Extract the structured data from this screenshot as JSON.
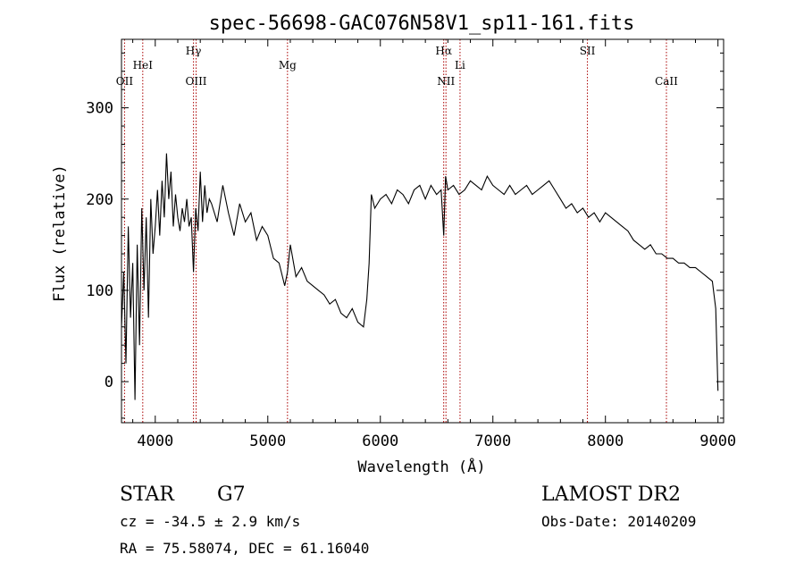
{
  "chart_data": {
    "type": "line",
    "title": "spec-56698-GAC076N58V1_sp11-161.fits",
    "xlabel": "Wavelength (Å)",
    "ylabel": "Flux (relative)",
    "xlim": [
      3700,
      9050
    ],
    "ylim": [
      -45,
      375
    ],
    "xticks": [
      4000,
      5000,
      6000,
      7000,
      8000,
      9000
    ],
    "yticks": [
      0,
      100,
      200,
      300
    ],
    "grid": false,
    "line_color": "#000000",
    "marker_color": "#aa0000",
    "emission_lines": [
      {
        "label": "OII",
        "wavelength": 3727,
        "row": 2
      },
      {
        "label": "HeI",
        "wavelength": 3889,
        "row": 1
      },
      {
        "label": "Hγ",
        "wavelength": 4340,
        "row": 0
      },
      {
        "label": "OIII",
        "wavelength": 4363,
        "row": 2
      },
      {
        "label": "Mg",
        "wavelength": 5175,
        "row": 1
      },
      {
        "label": "Hα",
        "wavelength": 6563,
        "row": 0
      },
      {
        "label": "NII",
        "wavelength": 6583,
        "row": 2
      },
      {
        "label": "Li",
        "wavelength": 6708,
        "row": 1
      },
      {
        "label": "SII",
        "wavelength": 7840,
        "row": 0
      },
      {
        "label": "CaII",
        "wavelength": 8542,
        "row": 2
      }
    ],
    "series": [
      {
        "x": [
          3700,
          3720,
          3740,
          3760,
          3780,
          3800,
          3820,
          3840,
          3860,
          3880,
          3900,
          3920,
          3940,
          3960,
          3980,
          4000,
          4020,
          4040,
          4060,
          4080,
          4100,
          4120,
          4140,
          4160,
          4180,
          4200,
          4220,
          4240,
          4260,
          4280,
          4300,
          4320,
          4340,
          4360,
          4380,
          4400,
          4420,
          4440,
          4460,
          4480,
          4500,
          4550,
          4600,
          4650,
          4700,
          4750,
          4800,
          4850,
          4900,
          4950,
          5000,
          5050,
          5100,
          5150,
          5175,
          5200,
          5250,
          5300,
          5350,
          5400,
          5450,
          5500,
          5550,
          5600,
          5650,
          5700,
          5750,
          5800,
          5850,
          5880,
          5900,
          5920,
          5950,
          6000,
          6050,
          6100,
          6150,
          6200,
          6250,
          6300,
          6350,
          6400,
          6450,
          6500,
          6540,
          6563,
          6580,
          6600,
          6650,
          6700,
          6750,
          6800,
          6850,
          6900,
          6950,
          7000,
          7050,
          7100,
          7150,
          7200,
          7250,
          7300,
          7350,
          7400,
          7450,
          7500,
          7550,
          7600,
          7650,
          7700,
          7750,
          7800,
          7850,
          7900,
          7950,
          8000,
          8050,
          8100,
          8150,
          8200,
          8250,
          8300,
          8350,
          8400,
          8450,
          8500,
          8550,
          8600,
          8650,
          8700,
          8750,
          8800,
          8850,
          8900,
          8950,
          8980,
          9000
        ],
        "y": [
          60,
          120,
          20,
          170,
          70,
          130,
          -20,
          150,
          40,
          190,
          100,
          180,
          70,
          200,
          140,
          170,
          210,
          160,
          220,
          180,
          250,
          200,
          230,
          170,
          205,
          180,
          165,
          190,
          175,
          200,
          170,
          180,
          120,
          190,
          165,
          230,
          175,
          215,
          185,
          200,
          195,
          175,
          215,
          185,
          160,
          195,
          175,
          185,
          155,
          170,
          160,
          135,
          130,
          105,
          120,
          150,
          115,
          125,
          110,
          105,
          100,
          95,
          85,
          90,
          75,
          70,
          80,
          65,
          60,
          90,
          130,
          205,
          190,
          200,
          205,
          195,
          210,
          205,
          195,
          210,
          215,
          200,
          215,
          205,
          210,
          160,
          225,
          210,
          215,
          205,
          210,
          220,
          215,
          210,
          225,
          215,
          210,
          205,
          215,
          205,
          210,
          215,
          205,
          210,
          215,
          220,
          210,
          200,
          190,
          195,
          185,
          190,
          180,
          185,
          175,
          185,
          180,
          175,
          170,
          165,
          155,
          150,
          145,
          150,
          140,
          140,
          135,
          135,
          130,
          130,
          125,
          125,
          120,
          115,
          110,
          80,
          -10
        ]
      }
    ]
  },
  "footer": {
    "object_type": "STAR",
    "spectral_class": "G7",
    "cz_text": "cz = -34.5 ± 2.9 km/s",
    "coords_text": "RA =  75.58074, DEC =  61.16040",
    "survey": "LAMOST DR2",
    "obs_date_text": "Obs-Date: 20140209"
  }
}
